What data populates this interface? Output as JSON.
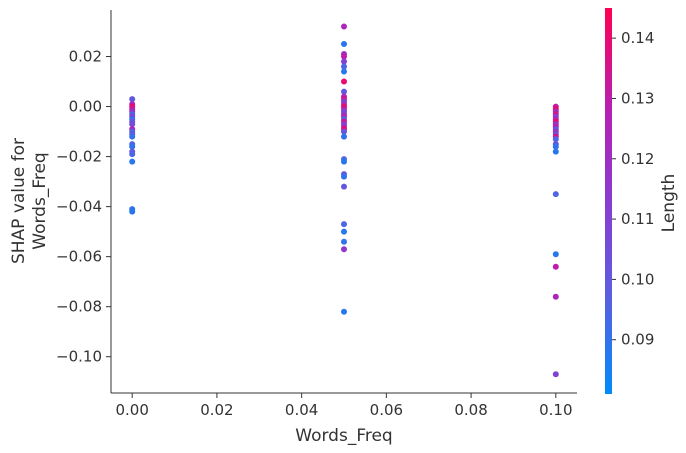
{
  "chart_data": {
    "type": "scatter",
    "xlabel": "Words_Freq",
    "ylabel": [
      "SHAP value for",
      "Words_Freq"
    ],
    "xlim": [
      -0.005,
      0.105
    ],
    "ylim": [
      -0.1145,
      0.0386
    ],
    "x_ticks": [
      0.0,
      0.02,
      0.04,
      0.06,
      0.08,
      0.1
    ],
    "x_tick_labels": [
      "0.00",
      "0.02",
      "0.04",
      "0.06",
      "0.08",
      "0.10"
    ],
    "y_ticks": [
      0.02,
      0.0,
      -0.02,
      -0.04,
      -0.06,
      -0.08,
      -0.1
    ],
    "y_tick_labels": [
      "0.02",
      "0.00",
      "−0.02",
      "−0.04",
      "−0.06",
      "−0.08",
      "−0.10"
    ],
    "grid": false,
    "colorbar": {
      "label": "Length",
      "range": [
        0.081,
        0.145
      ],
      "ticks": [
        0.09,
        0.1,
        0.11,
        0.12,
        0.13,
        0.14
      ],
      "tick_labels": [
        "0.09",
        "0.10",
        "0.11",
        "0.12",
        "0.13",
        "0.14"
      ],
      "colors": [
        "#008bfb",
        "#5a5fe0",
        "#8a3bd0",
        "#b91fb0",
        "#ff0052"
      ]
    },
    "points": [
      {
        "x": 0.0,
        "y": 0.003,
        "c": 0.1
      },
      {
        "x": 0.0,
        "y": 0.001,
        "c": 0.125
      },
      {
        "x": 0.0,
        "y": 0.0,
        "c": 0.14
      },
      {
        "x": 0.0,
        "y": -0.001,
        "c": 0.13
      },
      {
        "x": 0.0,
        "y": -0.002,
        "c": 0.12
      },
      {
        "x": 0.0,
        "y": -0.003,
        "c": 0.095
      },
      {
        "x": 0.0,
        "y": -0.004,
        "c": 0.11
      },
      {
        "x": 0.0,
        "y": -0.005,
        "c": 0.09
      },
      {
        "x": 0.0,
        "y": -0.006,
        "c": 0.1
      },
      {
        "x": 0.0,
        "y": -0.007,
        "c": 0.105
      },
      {
        "x": 0.0,
        "y": -0.009,
        "c": 0.125
      },
      {
        "x": 0.0,
        "y": -0.01,
        "c": 0.095
      },
      {
        "x": 0.0,
        "y": -0.011,
        "c": 0.1
      },
      {
        "x": 0.0,
        "y": -0.012,
        "c": 0.09
      },
      {
        "x": 0.0,
        "y": -0.015,
        "c": 0.095
      },
      {
        "x": 0.0,
        "y": -0.016,
        "c": 0.09
      },
      {
        "x": 0.0,
        "y": -0.018,
        "c": 0.1
      },
      {
        "x": 0.0,
        "y": -0.019,
        "c": 0.095
      },
      {
        "x": 0.0,
        "y": -0.022,
        "c": 0.088
      },
      {
        "x": 0.0,
        "y": -0.041,
        "c": 0.09
      },
      {
        "x": 0.0,
        "y": -0.042,
        "c": 0.088
      },
      {
        "x": 0.05,
        "y": 0.032,
        "c": 0.125
      },
      {
        "x": 0.05,
        "y": 0.025,
        "c": 0.088
      },
      {
        "x": 0.05,
        "y": 0.021,
        "c": 0.12
      },
      {
        "x": 0.05,
        "y": 0.02,
        "c": 0.13
      },
      {
        "x": 0.05,
        "y": 0.018,
        "c": 0.11
      },
      {
        "x": 0.05,
        "y": 0.016,
        "c": 0.095
      },
      {
        "x": 0.05,
        "y": 0.014,
        "c": 0.088
      },
      {
        "x": 0.05,
        "y": 0.01,
        "c": 0.14
      },
      {
        "x": 0.05,
        "y": 0.006,
        "c": 0.1
      },
      {
        "x": 0.05,
        "y": 0.004,
        "c": 0.125
      },
      {
        "x": 0.05,
        "y": 0.003,
        "c": 0.135
      },
      {
        "x": 0.05,
        "y": 0.002,
        "c": 0.11
      },
      {
        "x": 0.05,
        "y": 0.001,
        "c": 0.12
      },
      {
        "x": 0.05,
        "y": 0.0,
        "c": 0.14
      },
      {
        "x": 0.05,
        "y": -0.001,
        "c": 0.13
      },
      {
        "x": 0.05,
        "y": -0.002,
        "c": 0.105
      },
      {
        "x": 0.05,
        "y": -0.003,
        "c": 0.115
      },
      {
        "x": 0.05,
        "y": -0.004,
        "c": 0.125
      },
      {
        "x": 0.05,
        "y": -0.005,
        "c": 0.095
      },
      {
        "x": 0.05,
        "y": -0.006,
        "c": 0.135
      },
      {
        "x": 0.05,
        "y": -0.007,
        "c": 0.11
      },
      {
        "x": 0.05,
        "y": -0.008,
        "c": 0.12
      },
      {
        "x": 0.05,
        "y": -0.009,
        "c": 0.14
      },
      {
        "x": 0.05,
        "y": -0.01,
        "c": 0.1
      },
      {
        "x": 0.05,
        "y": -0.012,
        "c": 0.09
      },
      {
        "x": 0.05,
        "y": -0.021,
        "c": 0.095
      },
      {
        "x": 0.05,
        "y": -0.022,
        "c": 0.088
      },
      {
        "x": 0.05,
        "y": -0.027,
        "c": 0.1
      },
      {
        "x": 0.05,
        "y": -0.028,
        "c": 0.09
      },
      {
        "x": 0.05,
        "y": -0.032,
        "c": 0.1
      },
      {
        "x": 0.05,
        "y": -0.047,
        "c": 0.095
      },
      {
        "x": 0.05,
        "y": -0.05,
        "c": 0.088
      },
      {
        "x": 0.05,
        "y": -0.054,
        "c": 0.09
      },
      {
        "x": 0.05,
        "y": -0.057,
        "c": 0.115
      },
      {
        "x": 0.05,
        "y": -0.082,
        "c": 0.088
      },
      {
        "x": 0.1,
        "y": 0.0,
        "c": 0.13
      },
      {
        "x": 0.1,
        "y": -0.001,
        "c": 0.14
      },
      {
        "x": 0.1,
        "y": -0.002,
        "c": 0.12
      },
      {
        "x": 0.1,
        "y": -0.003,
        "c": 0.135
      },
      {
        "x": 0.1,
        "y": -0.004,
        "c": 0.11
      },
      {
        "x": 0.1,
        "y": -0.005,
        "c": 0.125
      },
      {
        "x": 0.1,
        "y": -0.006,
        "c": 0.14
      },
      {
        "x": 0.1,
        "y": -0.007,
        "c": 0.115
      },
      {
        "x": 0.1,
        "y": -0.008,
        "c": 0.13
      },
      {
        "x": 0.1,
        "y": -0.009,
        "c": 0.1
      },
      {
        "x": 0.1,
        "y": -0.01,
        "c": 0.12
      },
      {
        "x": 0.1,
        "y": -0.011,
        "c": 0.105
      },
      {
        "x": 0.1,
        "y": -0.012,
        "c": 0.135
      },
      {
        "x": 0.1,
        "y": -0.013,
        "c": 0.095
      },
      {
        "x": 0.1,
        "y": -0.015,
        "c": 0.1
      },
      {
        "x": 0.1,
        "y": -0.016,
        "c": 0.09
      },
      {
        "x": 0.1,
        "y": -0.018,
        "c": 0.088
      },
      {
        "x": 0.1,
        "y": -0.035,
        "c": 0.095
      },
      {
        "x": 0.1,
        "y": -0.059,
        "c": 0.088
      },
      {
        "x": 0.1,
        "y": -0.064,
        "c": 0.13
      },
      {
        "x": 0.1,
        "y": -0.076,
        "c": 0.125
      },
      {
        "x": 0.1,
        "y": -0.107,
        "c": 0.11
      }
    ]
  }
}
